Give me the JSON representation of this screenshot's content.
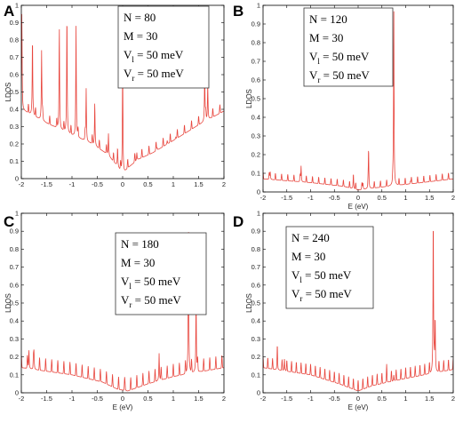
{
  "chart_data": [
    {
      "type": "line",
      "panel": "A",
      "xlabel": "",
      "ylabel": "LDOS",
      "xlim": [
        -2,
        2
      ],
      "ylim": [
        0,
        1
      ],
      "xticks": [
        "-2",
        "-1.5",
        "-1",
        "-0.5",
        "0",
        "0.5",
        "1",
        "1.5",
        "2"
      ],
      "yticks": [
        "0",
        "0.1",
        "0.2",
        "0.3",
        "0.4",
        "0.5",
        "0.6",
        "0.7",
        "0.8",
        "0.9",
        "1"
      ],
      "grid": false,
      "legend_position": "top-right",
      "legend": [
        {
          "main": "N = 80",
          "sub": ""
        },
        {
          "main": "M = 30",
          "sub": ""
        },
        {
          "main": "V",
          "sub": "l",
          "rest": " = 50 meV"
        },
        {
          "main": "V",
          "sub": "r",
          "rest": " = 50 meV"
        }
      ],
      "series": [
        {
          "color": "#e8463e",
          "baseline": {
            "x": [
              -2,
              -1.5,
              -1,
              -0.6,
              -0.3,
              -0.1,
              0,
              0.1,
              0.3,
              0.6,
              1,
              1.5,
              2
            ],
            "y": [
              0.4,
              0.32,
              0.25,
              0.2,
              0.14,
              0.07,
              0.02,
              0.06,
              0.11,
              0.15,
              0.22,
              0.31,
              0.39
            ]
          },
          "peak_spacing": 0.14,
          "peak_height": 0.05,
          "peaks": [
            {
              "x": -1.99,
              "y": 0.95
            },
            {
              "x": -1.78,
              "y": 0.82
            },
            {
              "x": -1.6,
              "y": 0.74
            },
            {
              "x": -1.25,
              "y": 0.88
            },
            {
              "x": -1.1,
              "y": 0.96
            },
            {
              "x": -0.92,
              "y": 0.88
            },
            {
              "x": -0.72,
              "y": 0.52
            },
            {
              "x": -0.55,
              "y": 0.44
            },
            {
              "x": -0.28,
              "y": 0.26
            },
            {
              "x": -0.1,
              "y": 0.18
            },
            {
              "x": 0.0,
              "y": 0.72
            },
            {
              "x": 0.28,
              "y": 0.15
            },
            {
              "x": 0.68,
              "y": 0.18
            },
            {
              "x": 0.88,
              "y": 0.22
            },
            {
              "x": 1.05,
              "y": 0.24
            },
            {
              "x": 1.62,
              "y": 0.62
            },
            {
              "x": 1.68,
              "y": 0.55
            }
          ]
        }
      ]
    },
    {
      "type": "line",
      "panel": "B",
      "xlabel": "E (eV)",
      "ylabel": "LDOS",
      "xlim": [
        -2,
        2
      ],
      "ylim": [
        0,
        1
      ],
      "xticks": [
        "-2",
        "-1.5",
        "-1",
        "-0.5",
        "0",
        "0.5",
        "1",
        "1.5",
        "2"
      ],
      "yticks": [
        "0",
        "0.1",
        "0.2",
        "0.3",
        "0.4",
        "0.5",
        "0.6",
        "0.7",
        "0.8",
        "0.9",
        "1"
      ],
      "grid": false,
      "legend_position": "top-center",
      "legend": [
        {
          "main": "N = 120",
          "sub": ""
        },
        {
          "main": "M = 30",
          "sub": ""
        },
        {
          "main": "V",
          "sub": "l",
          "rest": " = 50 meV"
        },
        {
          "main": "V",
          "sub": "r",
          "rest": " = 50 meV"
        }
      ],
      "series": [
        {
          "color": "#e8463e",
          "baseline": {
            "x": [
              -2,
              -1,
              -0.3,
              0,
              0.3,
              1,
              2
            ],
            "y": [
              0.07,
              0.05,
              0.03,
              0.01,
              0.02,
              0.04,
              0.07
            ]
          },
          "peak_spacing": 0.13,
          "peak_height": 0.035,
          "peaks": [
            {
              "x": -1.85,
              "y": 0.11
            },
            {
              "x": -1.2,
              "y": 0.14
            },
            {
              "x": -0.1,
              "y": 0.1
            },
            {
              "x": 0.1,
              "y": 0.05
            },
            {
              "x": 0.22,
              "y": 0.23
            },
            {
              "x": 0.75,
              "y": 1.0
            },
            {
              "x": 1.1,
              "y": 0.06
            }
          ]
        }
      ]
    },
    {
      "type": "line",
      "panel": "C",
      "xlabel": "E (eV)",
      "ylabel": "LDOS",
      "xlim": [
        -2,
        2
      ],
      "ylim": [
        0,
        1
      ],
      "xticks": [
        "-2",
        "-1.5",
        "-1",
        "-0.5",
        "0",
        "0.5",
        "1",
        "1.5",
        "2"
      ],
      "yticks": [
        "0",
        "0.1",
        "0.2",
        "0.3",
        "0.4",
        "0.5",
        "0.6",
        "0.7",
        "0.8",
        "0.9",
        "1"
      ],
      "grid": false,
      "legend_position": "top-center",
      "legend": [
        {
          "main": "N = 180",
          "sub": ""
        },
        {
          "main": "M = 30",
          "sub": ""
        },
        {
          "main": "V",
          "sub": "l",
          "rest": " = 50 meV"
        },
        {
          "main": "V",
          "sub": "r",
          "rest": " = 50 meV"
        }
      ],
      "series": [
        {
          "color": "#e8463e",
          "baseline": {
            "x": [
              -2,
              -1,
              -0.4,
              -0.1,
              0.1,
              0.5,
              1,
              2
            ],
            "y": [
              0.14,
              0.1,
              0.06,
              0.02,
              0.01,
              0.05,
              0.09,
              0.14
            ]
          },
          "peak_spacing": 0.12,
          "peak_height": 0.07,
          "peaks": [
            {
              "x": -1.85,
              "y": 0.24
            },
            {
              "x": -1.75,
              "y": 0.22
            },
            {
              "x": 0.05,
              "y": 0.03
            },
            {
              "x": 0.72,
              "y": 0.22
            },
            {
              "x": 1.3,
              "y": 1.0
            },
            {
              "x": 1.45,
              "y": 0.54
            },
            {
              "x": 1.6,
              "y": 0.12
            }
          ]
        }
      ]
    },
    {
      "type": "line",
      "panel": "D",
      "xlabel": "E (eV)",
      "ylabel": "LDOS",
      "xlim": [
        -2,
        2
      ],
      "ylim": [
        0,
        1
      ],
      "xticks": [
        "-2",
        "-1.5",
        "-1",
        "-0.5",
        "0",
        "0.5",
        "1",
        "1.5",
        "2"
      ],
      "yticks": [
        "0",
        "0.1",
        "0.2",
        "0.3",
        "0.4",
        "0.5",
        "0.6",
        "0.7",
        "0.8",
        "0.9",
        "1"
      ],
      "grid": false,
      "legend_position": "top-left",
      "legend": [
        {
          "main": "N = 240",
          "sub": ""
        },
        {
          "main": "M = 30",
          "sub": ""
        },
        {
          "main": "V",
          "sub": "l",
          "rest": " = 50 meV"
        },
        {
          "main": "V",
          "sub": "r",
          "rest": " = 50 meV"
        }
      ],
      "series": [
        {
          "color": "#e8463e",
          "baseline": {
            "x": [
              -2,
              -1,
              -0.4,
              0,
              0.3,
              1,
              2
            ],
            "y": [
              0.14,
              0.1,
              0.05,
              0.01,
              0.04,
              0.08,
              0.13
            ]
          },
          "peak_spacing": 0.1,
          "peak_height": 0.06,
          "peaks": [
            {
              "x": -1.7,
              "y": 0.21
            },
            {
              "x": -1.55,
              "y": 0.19
            },
            {
              "x": 0.6,
              "y": 0.1
            },
            {
              "x": 0.75,
              "y": 0.1
            },
            {
              "x": 1.58,
              "y": 1.0
            },
            {
              "x": 1.62,
              "y": 0.42
            }
          ]
        }
      ]
    }
  ]
}
